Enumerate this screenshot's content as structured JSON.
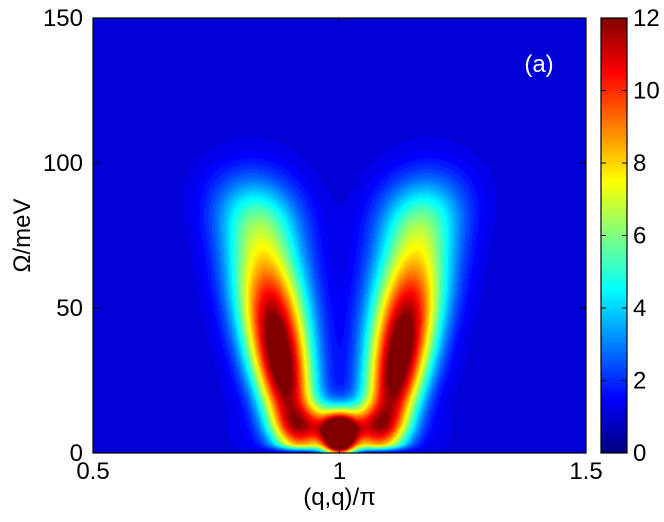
{
  "chart_data": {
    "type": "heatmap",
    "title": "",
    "panel_label": "(a)",
    "xlabel": "(q,q)/π",
    "ylabel": "Ω/meV",
    "xlim": [
      0.5,
      1.5
    ],
    "ylim": [
      0,
      150
    ],
    "x_ticks": [
      0.5,
      1,
      1.5
    ],
    "x_tick_labels": [
      "0.5",
      "1",
      "1.5"
    ],
    "y_ticks": [
      0,
      50,
      100,
      150
    ],
    "y_tick_labels": [
      "0",
      "50",
      "100",
      "150"
    ],
    "colorbar": {
      "range": [
        0,
        12
      ],
      "ticks": [
        0,
        2,
        4,
        6,
        8,
        10,
        12
      ],
      "tick_labels": [
        "0",
        "2",
        "4",
        "6",
        "8",
        "10",
        "12"
      ],
      "colormap": "jet",
      "colors": [
        "#00007f",
        "#0000ff",
        "#00ffff",
        "#ffff00",
        "#ff0000",
        "#7f0000"
      ]
    },
    "grid": false,
    "features": {
      "description_values": "V-shaped intensity ridge centered at q=1, peak intensity about 12 near (1, 5 meV)",
      "arms": [
        {
          "q_bottom": 0.92,
          "q_top": 0.82,
          "omega_peak": 28,
          "max_intensity": 11
        },
        {
          "q_bottom": 1.08,
          "q_top": 1.18,
          "omega_peak": 28,
          "max_intensity": 11
        }
      ],
      "ridge_top_omega": 100,
      "central_spot": {
        "q": 1.0,
        "omega": 5,
        "intensity": 12
      },
      "background_intensity": 1
    }
  }
}
